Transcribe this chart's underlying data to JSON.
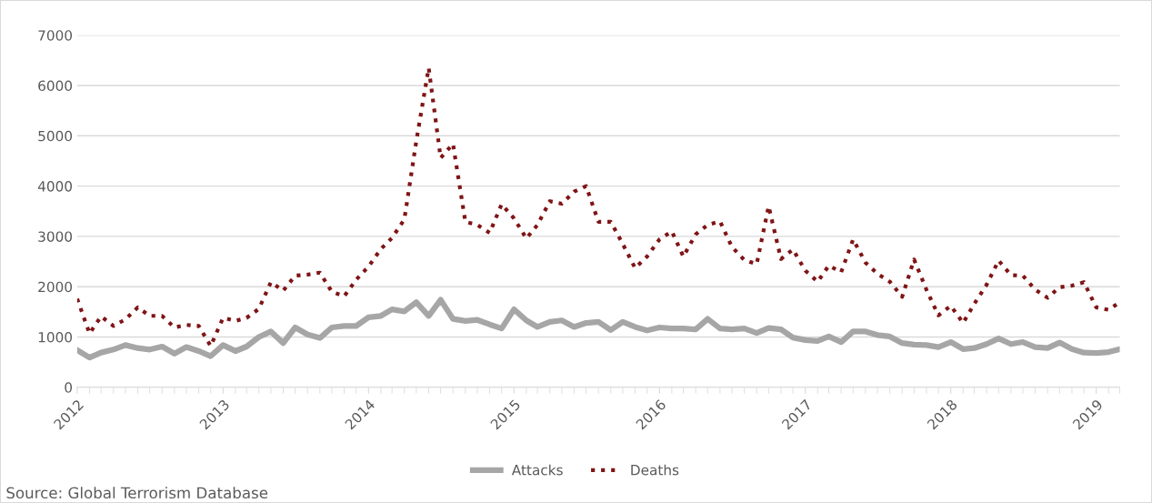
{
  "chart_data": {
    "type": "line",
    "x": [
      "2012-01",
      "2012-02",
      "2012-03",
      "2012-04",
      "2012-05",
      "2012-06",
      "2012-07",
      "2012-08",
      "2012-09",
      "2012-10",
      "2012-11",
      "2012-12",
      "2013-01",
      "2013-02",
      "2013-03",
      "2013-04",
      "2013-05",
      "2013-06",
      "2013-07",
      "2013-08",
      "2013-09",
      "2013-10",
      "2013-11",
      "2013-12",
      "2014-01",
      "2014-02",
      "2014-03",
      "2014-04",
      "2014-05",
      "2014-06",
      "2014-07",
      "2014-08",
      "2014-09",
      "2014-10",
      "2014-11",
      "2014-12",
      "2015-01",
      "2015-02",
      "2015-03",
      "2015-04",
      "2015-05",
      "2015-06",
      "2015-07",
      "2015-08",
      "2015-09",
      "2015-10",
      "2015-11",
      "2015-12",
      "2016-01",
      "2016-02",
      "2016-03",
      "2016-04",
      "2016-05",
      "2016-06",
      "2016-07",
      "2016-08",
      "2016-09",
      "2016-10",
      "2016-11",
      "2016-12",
      "2017-01",
      "2017-02",
      "2017-03",
      "2017-04",
      "2017-05",
      "2017-06",
      "2017-07",
      "2017-08",
      "2017-09",
      "2017-10",
      "2017-11",
      "2017-12",
      "2018-01",
      "2018-02",
      "2018-03",
      "2018-04",
      "2018-05",
      "2018-06",
      "2018-07",
      "2018-08",
      "2018-09",
      "2018-10",
      "2018-11",
      "2018-12",
      "2019-01",
      "2019-02",
      "2019-03"
    ],
    "series": [
      {
        "name": "Attacks",
        "color": "#a6a6a6",
        "line_style": "solid",
        "values": [
          740,
          590,
          690,
          750,
          840,
          780,
          750,
          810,
          670,
          800,
          720,
          620,
          840,
          720,
          810,
          1000,
          1110,
          880,
          1190,
          1050,
          980,
          1190,
          1220,
          1220,
          1390,
          1420,
          1550,
          1510,
          1690,
          1420,
          1740,
          1360,
          1320,
          1340,
          1250,
          1170,
          1550,
          1330,
          1200,
          1300,
          1330,
          1200,
          1280,
          1300,
          1140,
          1300,
          1200,
          1130,
          1190,
          1170,
          1170,
          1150,
          1360,
          1170,
          1150,
          1170,
          1080,
          1180,
          1150,
          990,
          940,
          920,
          1010,
          900,
          1110,
          1110,
          1040,
          1010,
          880,
          850,
          840,
          800,
          900,
          760,
          780,
          860,
          970,
          860,
          900,
          800,
          780,
          890,
          760,
          690,
          680,
          700,
          760
        ]
      },
      {
        "name": "Deaths",
        "color": "#7f1416",
        "line_style": "dotted",
        "values": [
          1760,
          1070,
          1410,
          1220,
          1350,
          1590,
          1420,
          1420,
          1190,
          1240,
          1220,
          820,
          1380,
          1320,
          1380,
          1560,
          2090,
          1920,
          2220,
          2240,
          2280,
          1900,
          1810,
          2140,
          2400,
          2750,
          2970,
          3340,
          4900,
          6350,
          4560,
          4840,
          3290,
          3230,
          3070,
          3640,
          3360,
          2960,
          3230,
          3700,
          3650,
          3890,
          4000,
          3290,
          3290,
          2850,
          2370,
          2600,
          2940,
          3100,
          2600,
          3040,
          3230,
          3300,
          2790,
          2530,
          2450,
          3600,
          2550,
          2740,
          2320,
          2100,
          2420,
          2290,
          2940,
          2480,
          2260,
          2100,
          1800,
          2540,
          1940,
          1430,
          1620,
          1280,
          1660,
          2040,
          2520,
          2230,
          2220,
          1940,
          1780,
          1990,
          2020,
          2090,
          1590,
          1540,
          1690
        ]
      }
    ],
    "xlim": [
      "2012-01",
      "2019-03"
    ],
    "xticks": [
      "2012",
      "2013",
      "2014",
      "2015",
      "2016",
      "2017",
      "2018",
      "2019"
    ],
    "ylim": [
      0,
      7000
    ],
    "yticks": [
      0,
      1000,
      2000,
      3000,
      4000,
      5000,
      6000,
      7000
    ],
    "grid": "y",
    "legend": "bottom",
    "marker": "none",
    "annotations": [
      "Source: Global Terrorism Database"
    ]
  }
}
